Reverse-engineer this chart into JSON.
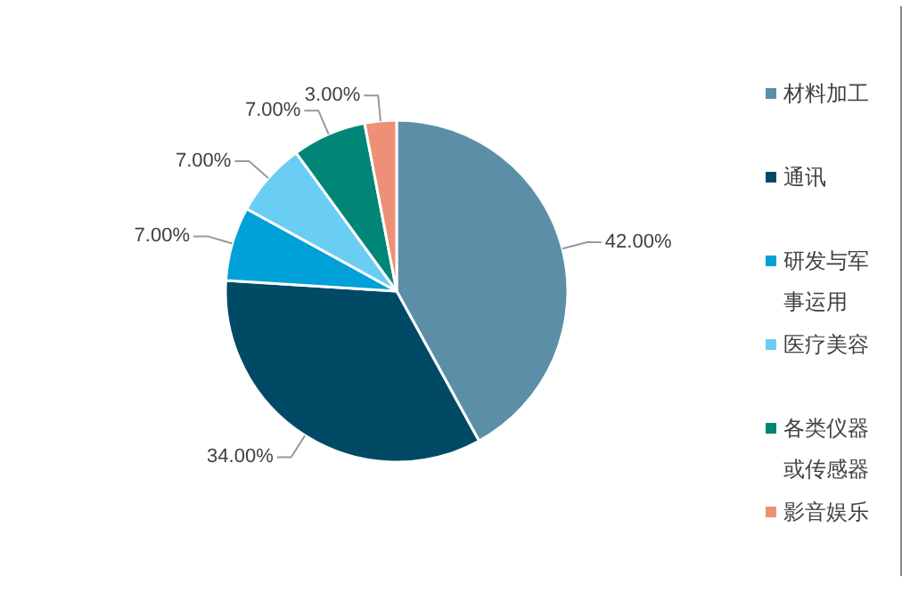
{
  "chart_data": {
    "type": "pie",
    "categories": [
      "材料加工",
      "通讯",
      "研发与军事运用",
      "医疗美容",
      "各类仪器或传感器",
      "影音娱乐"
    ],
    "values": [
      42,
      34,
      7,
      7,
      7,
      3
    ],
    "value_labels": [
      "42.00%",
      "34.00%",
      "7.00%",
      "7.00%",
      "7.00%",
      "3.00%"
    ],
    "colors": [
      "#5b8fa8",
      "#004a66",
      "#00a0d8",
      "#6acdf4",
      "#008577",
      "#ee8f78"
    ],
    "legend": "right"
  }
}
